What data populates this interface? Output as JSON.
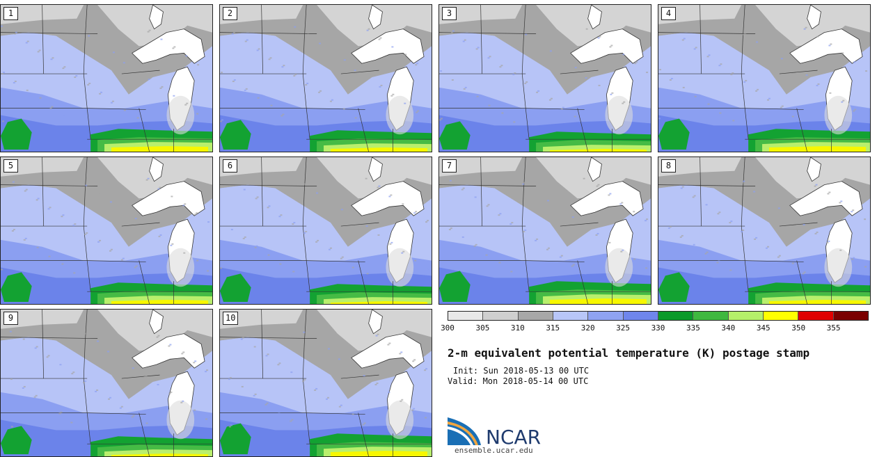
{
  "panels": [
    "1",
    "2",
    "3",
    "4",
    "5",
    "6",
    "7",
    "8",
    "9",
    "10"
  ],
  "colorbar": {
    "ticks": [
      "300",
      "305",
      "310",
      "315",
      "320",
      "325",
      "330",
      "335",
      "340",
      "345",
      "350",
      "355"
    ],
    "colors": [
      "#e8e8e8",
      "#cfcfcf",
      "#a8a8a8",
      "#b8c6f8",
      "#8fa3f2",
      "#6f86ec",
      "#0a9a2a",
      "#3fb83f",
      "#b5f06a",
      "#ffff00",
      "#e00000",
      "#7a0000"
    ]
  },
  "map_colors": {
    "band_315": "#b7c4f7",
    "band_320": "#8b9ff1",
    "band_325": "#6b83ea",
    "band_330": "#13a232",
    "band_335": "#46bb45",
    "band_340": "#b9ef6d",
    "band_345": "#f7f700",
    "band_310": "#a6a6a6",
    "band_305": "#d4d4d4",
    "band_300": "#ececec",
    "lake": "#ffffff"
  },
  "title": "2-m equivalent potential temperature (K) postage stamp",
  "init": "Init: Sun 2018-05-13 00 UTC",
  "valid": "Valid: Mon 2018-05-14 00 UTC",
  "logo": {
    "text": "NCAR",
    "site": "ensemble.ucar.edu"
  }
}
